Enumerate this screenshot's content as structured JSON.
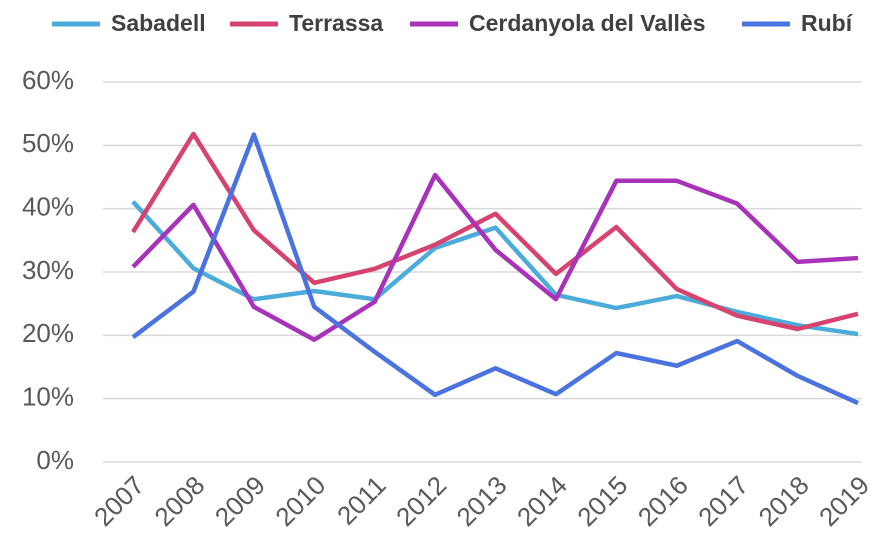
{
  "chart_data": {
    "type": "line",
    "categories": [
      "2007",
      "2008",
      "2009",
      "2010",
      "2011",
      "2012",
      "2013",
      "2014",
      "2015",
      "2016",
      "2017",
      "2018",
      "2019"
    ],
    "series": [
      {
        "name": "Sabadell",
        "color": "#4bacdb",
        "values": [
          41.1,
          30.6,
          25.7,
          27,
          25.7,
          33.8,
          37,
          26.4,
          24.3,
          26.2,
          23.7,
          21.6,
          20.2
        ]
      },
      {
        "name": "Terrassa",
        "color": "#d6436f",
        "values": [
          36.3,
          51.8,
          36.6,
          28.3,
          30.5,
          34.3,
          39.2,
          29.7,
          37.1,
          27.3,
          23.1,
          21,
          23.4
        ]
      },
      {
        "name": "Cerdanyola del Vallès",
        "color": "#a832b8",
        "values": [
          30.8,
          40.6,
          24.5,
          19.3,
          25.3,
          45.3,
          33.5,
          25.7,
          44.4,
          44.4,
          40.8,
          31.6,
          32.2
        ]
      },
      {
        "name": "Rubí",
        "color": "#4a73e0",
        "values": [
          19.7,
          26.9,
          51.7,
          24.5,
          17.4,
          10.6,
          14.8,
          10.7,
          17.2,
          15.2,
          19.1,
          13.6,
          9.3
        ]
      }
    ],
    "ylim": [
      0,
      60
    ],
    "yticks": [
      {
        "value": 0,
        "label": "0%"
      },
      {
        "value": 10,
        "label": "10%"
      },
      {
        "value": 20,
        "label": "20%"
      },
      {
        "value": 30,
        "label": "30%"
      },
      {
        "value": 40,
        "label": "40%"
      },
      {
        "value": 50,
        "label": "50%"
      },
      {
        "value": 60,
        "label": "60%"
      }
    ],
    "grid": true,
    "legend": "top"
  }
}
